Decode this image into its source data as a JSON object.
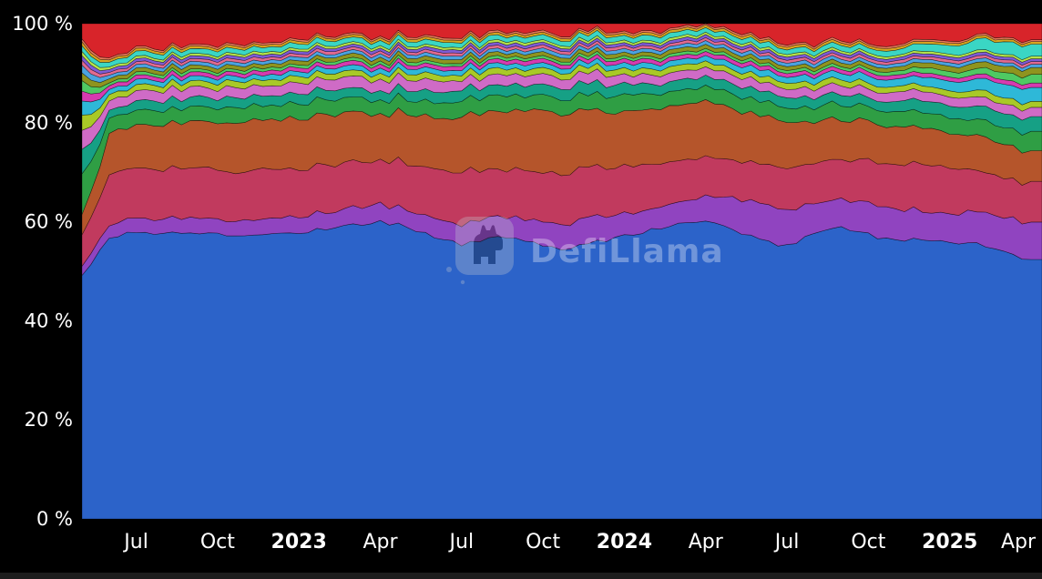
{
  "watermark": {
    "text": "DefiLlama"
  },
  "chart_data": {
    "type": "area",
    "stacked": true,
    "normalized_to_100pct": true,
    "background": "#000000",
    "x_start": "2022-05",
    "x_end": "2025-04",
    "x_interval": "month",
    "ylim": [
      0,
      100
    ],
    "grid": false,
    "legend": "none",
    "noise": 0.45,
    "y_ticks": [
      {
        "label": "0 %",
        "value": 0
      },
      {
        "label": "20 %",
        "value": 20
      },
      {
        "label": "40 %",
        "value": 40
      },
      {
        "label": "60 %",
        "value": 60
      },
      {
        "label": "80 %",
        "value": 80
      },
      {
        "label": "100 %",
        "value": 100
      }
    ],
    "x_ticks": [
      {
        "label": "Jul",
        "index": 2,
        "bold": false
      },
      {
        "label": "Oct",
        "index": 5,
        "bold": false
      },
      {
        "label": "2023",
        "index": 8,
        "bold": true
      },
      {
        "label": "Apr",
        "index": 11,
        "bold": false
      },
      {
        "label": "Jul",
        "index": 14,
        "bold": false
      },
      {
        "label": "Oct",
        "index": 17,
        "bold": false
      },
      {
        "label": "2024",
        "index": 20,
        "bold": true
      },
      {
        "label": "Apr",
        "index": 23,
        "bold": false
      },
      {
        "label": "Jul",
        "index": 26,
        "bold": false
      },
      {
        "label": "Oct",
        "index": 29,
        "bold": false
      },
      {
        "label": "2025",
        "index": 32,
        "bold": true
      },
      {
        "label": "Apr",
        "index": 35,
        "bold": false
      }
    ],
    "series": [
      {
        "name": "blue",
        "color": "#2c63c9",
        "values": [
          49.0,
          57.0,
          58.0,
          57.5,
          58.0,
          57.5,
          57.0,
          57.5,
          58.0,
          58.5,
          59.5,
          60.0,
          59.0,
          57.0,
          55.5,
          56.5,
          57.0,
          55.0,
          54.5,
          56.0,
          57.0,
          58.5,
          59.5,
          60.0,
          58.5,
          56.5,
          55.0,
          58.0,
          59.0,
          57.5,
          56.0,
          56.5,
          56.0,
          55.5,
          54.0,
          52.0
        ]
      },
      {
        "name": "purple",
        "color": "#9044c0",
        "values": [
          2.0,
          2.5,
          3.0,
          3.0,
          3.0,
          3.0,
          3.2,
          3.2,
          3.3,
          3.3,
          3.4,
          3.5,
          3.6,
          3.8,
          4.0,
          4.0,
          4.2,
          4.5,
          5.0,
          5.0,
          4.5,
          4.2,
          4.5,
          5.0,
          6.5,
          7.5,
          7.0,
          6.0,
          5.5,
          6.0,
          6.5,
          6.0,
          6.0,
          6.5,
          7.0,
          7.5
        ]
      },
      {
        "name": "raspberry",
        "color": "#c13a5e",
        "values": [
          6.0,
          10.0,
          10.5,
          10.0,
          10.0,
          10.0,
          10.0,
          10.0,
          9.5,
          9.5,
          9.0,
          9.0,
          9.5,
          10.0,
          10.5,
          10.0,
          9.5,
          10.0,
          10.5,
          10.0,
          9.5,
          9.0,
          8.5,
          8.0,
          7.5,
          8.0,
          8.5,
          8.0,
          8.0,
          8.5,
          9.0,
          9.5,
          9.0,
          8.5,
          8.0,
          8.0
        ]
      },
      {
        "name": "rust",
        "color": "#b5552b",
        "values": [
          4.0,
          8.0,
          8.5,
          9.0,
          9.5,
          9.5,
          10.0,
          10.0,
          10.0,
          10.5,
          10.0,
          9.5,
          10.0,
          10.5,
          11.0,
          11.5,
          12.0,
          12.5,
          12.0,
          11.5,
          11.0,
          11.0,
          11.5,
          11.0,
          10.5,
          10.0,
          9.5,
          8.5,
          8.0,
          8.0,
          7.5,
          7.5,
          7.0,
          7.0,
          6.8,
          6.5
        ]
      },
      {
        "name": "green",
        "color": "#2f9e44",
        "values": [
          8.0,
          3.0,
          3.0,
          3.0,
          3.0,
          3.0,
          3.0,
          3.0,
          3.0,
          3.0,
          3.0,
          3.0,
          3.0,
          3.2,
          3.4,
          3.2,
          3.0,
          3.0,
          3.0,
          3.2,
          3.4,
          3.2,
          3.0,
          2.8,
          3.0,
          3.0,
          3.0,
          3.0,
          3.0,
          3.0,
          3.0,
          3.0,
          3.0,
          3.2,
          3.4,
          3.6
        ]
      },
      {
        "name": "teal",
        "color": "#16a085",
        "values": [
          5.0,
          1.6,
          1.8,
          2.0,
          2.0,
          2.0,
          2.0,
          2.0,
          2.0,
          2.0,
          2.0,
          2.0,
          2.0,
          2.2,
          2.2,
          2.2,
          2.2,
          2.2,
          2.2,
          2.2,
          2.2,
          2.0,
          2.0,
          2.0,
          2.0,
          2.0,
          2.0,
          2.0,
          2.0,
          2.0,
          2.0,
          2.2,
          2.4,
          2.6,
          2.8,
          3.0
        ]
      },
      {
        "name": "orchid",
        "color": "#cf6bc6",
        "values": [
          4.0,
          2.0,
          2.0,
          2.0,
          2.0,
          2.0,
          2.0,
          2.0,
          2.2,
          2.2,
          2.2,
          2.2,
          2.2,
          2.2,
          2.0,
          2.0,
          2.0,
          2.0,
          2.0,
          2.0,
          1.8,
          1.8,
          1.8,
          1.8,
          1.8,
          1.8,
          1.8,
          1.8,
          1.8,
          1.8,
          1.8,
          1.8,
          1.8,
          1.8,
          1.8,
          1.8
        ]
      },
      {
        "name": "yellow-green",
        "color": "#a9c927",
        "values": [
          3.0,
          1.2,
          1.2,
          1.2,
          1.2,
          1.2,
          1.2,
          1.2,
          1.2,
          1.2,
          1.2,
          1.2,
          1.2,
          1.2,
          1.2,
          1.2,
          1.2,
          1.2,
          1.2,
          1.2,
          1.2,
          1.2,
          1.2,
          1.2,
          1.2,
          1.2,
          1.2,
          1.2,
          1.2,
          1.2,
          1.2,
          1.2,
          1.2,
          1.3,
          1.3,
          1.3
        ]
      },
      {
        "name": "cyan",
        "color": "#2eb8d8",
        "values": [
          3.0,
          1.0,
          1.0,
          1.0,
          1.0,
          1.0,
          1.0,
          1.0,
          1.0,
          1.0,
          1.0,
          1.0,
          1.0,
          1.0,
          1.0,
          1.0,
          1.0,
          1.0,
          1.0,
          1.0,
          1.1,
          1.1,
          1.1,
          1.1,
          1.2,
          1.2,
          1.2,
          1.3,
          1.3,
          1.4,
          1.5,
          1.7,
          2.0,
          2.3,
          2.6,
          3.0
        ]
      },
      {
        "name": "magenta",
        "color": "#d63bb0",
        "values": [
          2.0,
          0.8,
          0.8,
          0.8,
          0.8,
          0.8,
          0.8,
          0.8,
          0.8,
          0.8,
          0.8,
          0.8,
          0.8,
          0.8,
          0.8,
          0.8,
          0.8,
          0.8,
          0.8,
          0.8,
          0.8,
          0.8,
          0.8,
          0.8,
          0.8,
          0.8,
          0.8,
          0.8,
          0.8,
          0.8,
          0.8,
          0.8,
          0.8,
          0.9,
          0.9,
          0.9
        ]
      },
      {
        "name": "light-green",
        "color": "#4fc963",
        "values": [
          2.0,
          0.6,
          0.6,
          0.6,
          0.6,
          0.6,
          0.6,
          0.6,
          0.6,
          0.6,
          0.6,
          0.6,
          0.6,
          0.6,
          0.6,
          0.6,
          0.6,
          0.6,
          0.6,
          0.6,
          0.6,
          0.6,
          0.6,
          0.6,
          0.6,
          0.6,
          0.6,
          0.6,
          0.6,
          0.6,
          0.8,
          1.0,
          1.1,
          1.2,
          1.4,
          1.6
        ]
      },
      {
        "name": "olive",
        "color": "#8f941f",
        "values": [
          1.5,
          0.8,
          0.8,
          0.8,
          0.8,
          0.8,
          0.8,
          0.8,
          0.8,
          0.8,
          0.8,
          0.8,
          0.8,
          0.8,
          0.8,
          0.8,
          0.8,
          0.8,
          0.8,
          0.8,
          0.8,
          0.8,
          0.8,
          0.8,
          0.8,
          0.8,
          0.8,
          0.8,
          0.8,
          0.8,
          0.9,
          1.0,
          1.1,
          1.2,
          1.3,
          1.4
        ]
      },
      {
        "name": "sky-blue",
        "color": "#4aa3e0",
        "values": [
          1.5,
          0.7,
          0.7,
          0.7,
          0.7,
          0.7,
          0.7,
          0.7,
          0.7,
          0.7,
          0.7,
          0.7,
          0.7,
          0.7,
          0.7,
          0.7,
          0.7,
          0.7,
          0.7,
          0.7,
          0.7,
          0.7,
          0.7,
          0.7,
          0.7,
          0.7,
          0.7,
          0.7,
          0.7,
          0.7,
          0.7,
          0.7,
          0.7,
          0.7,
          0.7,
          0.7
        ]
      },
      {
        "name": "rose",
        "color": "#e26a8f",
        "values": [
          1.0,
          0.6,
          0.6,
          0.6,
          0.6,
          0.6,
          0.6,
          0.6,
          0.6,
          0.6,
          0.6,
          0.6,
          0.6,
          0.6,
          0.6,
          0.6,
          0.6,
          0.6,
          0.6,
          0.6,
          0.6,
          0.6,
          0.6,
          0.6,
          0.6,
          0.6,
          0.6,
          0.6,
          0.6,
          0.6,
          0.6,
          0.6,
          0.6,
          0.6,
          0.6,
          0.6
        ]
      },
      {
        "name": "violet",
        "color": "#7d5cd6",
        "values": [
          1.0,
          0.6,
          0.6,
          0.6,
          0.6,
          0.6,
          0.6,
          0.6,
          0.6,
          0.6,
          0.6,
          0.6,
          0.6,
          0.6,
          0.6,
          0.6,
          0.6,
          0.6,
          0.6,
          0.6,
          0.6,
          0.6,
          0.6,
          0.6,
          0.6,
          0.6,
          0.6,
          0.6,
          0.6,
          0.6,
          0.6,
          0.6,
          0.6,
          0.6,
          0.6,
          0.6
        ]
      },
      {
        "name": "lime",
        "color": "#b7e34a",
        "values": [
          0.8,
          0.5,
          0.5,
          0.5,
          0.5,
          0.5,
          0.5,
          0.5,
          0.5,
          0.5,
          0.5,
          0.5,
          0.5,
          0.5,
          0.5,
          0.5,
          0.5,
          0.5,
          0.5,
          0.5,
          0.5,
          0.5,
          0.5,
          0.5,
          0.5,
          0.5,
          0.5,
          0.5,
          0.5,
          0.5,
          0.5,
          0.5,
          0.5,
          0.5,
          0.5,
          0.5
        ]
      },
      {
        "name": "turquoise",
        "color": "#3ad6c4",
        "values": [
          1.2,
          1.0,
          1.0,
          1.0,
          1.0,
          1.0,
          1.0,
          1.0,
          1.0,
          1.0,
          1.0,
          1.0,
          1.0,
          1.0,
          1.0,
          1.0,
          1.0,
          1.0,
          1.0,
          1.0,
          1.0,
          1.0,
          1.0,
          1.0,
          1.0,
          1.0,
          1.0,
          1.0,
          1.0,
          1.0,
          1.2,
          1.5,
          1.8,
          2.2,
          2.4,
          2.6
        ]
      },
      {
        "name": "gold",
        "color": "#d9a520",
        "values": [
          0.8,
          0.5,
          0.5,
          0.5,
          0.5,
          0.5,
          0.5,
          0.5,
          0.5,
          0.5,
          0.5,
          0.5,
          0.5,
          0.5,
          0.5,
          0.5,
          0.5,
          0.5,
          0.5,
          0.5,
          0.5,
          0.5,
          0.5,
          0.5,
          0.5,
          0.5,
          0.5,
          0.5,
          0.5,
          0.5,
          0.5,
          0.5,
          0.5,
          0.5,
          0.5,
          0.5
        ]
      },
      {
        "name": "salmon",
        "color": "#e8795a",
        "values": [
          0.6,
          0.4,
          0.4,
          0.4,
          0.4,
          0.4,
          0.4,
          0.4,
          0.4,
          0.4,
          0.4,
          0.4,
          0.4,
          0.4,
          0.4,
          0.4,
          0.4,
          0.4,
          0.4,
          0.4,
          0.4,
          0.4,
          0.4,
          0.4,
          0.4,
          0.4,
          0.4,
          0.4,
          0.4,
          0.4,
          0.4,
          0.4,
          0.4,
          0.4,
          0.4,
          0.4
        ]
      },
      {
        "name": "red",
        "color": "#d8242a",
        "fill_remainder": true,
        "values": []
      }
    ]
  }
}
